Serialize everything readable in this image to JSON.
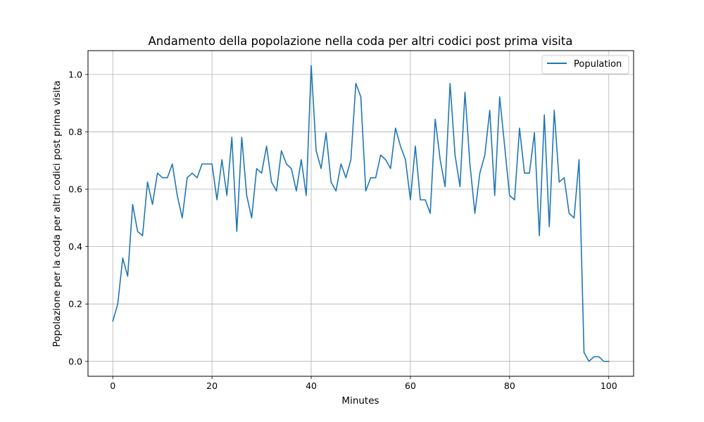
{
  "chart_data": {
    "type": "line",
    "title": "Andamento della popolazione nella coda per altri codici post prima visita",
    "xlabel": "Minutes",
    "ylabel": "Popolazione per la coda per altri codici post prima visita",
    "xlim": [
      -5,
      105
    ],
    "ylim": [
      -0.052,
      1.083
    ],
    "xticks": [
      0,
      20,
      40,
      60,
      80,
      100
    ],
    "yticks": [
      0.0,
      0.2,
      0.4,
      0.6,
      0.8,
      1.0
    ],
    "xtick_labels": [
      "0",
      "20",
      "40",
      "60",
      "80",
      "100"
    ],
    "ytick_labels": [
      "0.0",
      "0.2",
      "0.4",
      "0.6",
      "0.8",
      "1.0"
    ],
    "grid": true,
    "legend_position": "top-right",
    "series": [
      {
        "name": "Population",
        "color": "#1f77b4",
        "x": [
          0,
          1,
          2,
          3,
          4,
          5,
          6,
          7,
          8,
          9,
          10,
          11,
          12,
          13,
          14,
          15,
          16,
          17,
          18,
          19,
          20,
          21,
          22,
          23,
          24,
          25,
          26,
          27,
          28,
          29,
          30,
          31,
          32,
          33,
          34,
          35,
          36,
          37,
          38,
          39,
          40,
          41,
          42,
          43,
          44,
          45,
          46,
          47,
          48,
          49,
          50,
          51,
          52,
          53,
          54,
          55,
          56,
          57,
          58,
          59,
          60,
          61,
          62,
          63,
          64,
          65,
          66,
          67,
          68,
          69,
          70,
          71,
          72,
          73,
          74,
          75,
          76,
          77,
          78,
          79,
          80,
          81,
          82,
          83,
          84,
          85,
          86,
          87,
          88,
          89,
          90,
          91,
          92,
          93,
          94,
          95,
          96,
          97,
          98,
          99,
          100
        ],
        "values": [
          0.14,
          0.2,
          0.36,
          0.297,
          0.547,
          0.453,
          0.438,
          0.625,
          0.547,
          0.656,
          0.64,
          0.64,
          0.688,
          0.578,
          0.5,
          0.64,
          0.656,
          0.64,
          0.688,
          0.688,
          0.688,
          0.563,
          0.703,
          0.578,
          0.781,
          0.453,
          0.781,
          0.578,
          0.5,
          0.672,
          0.656,
          0.75,
          0.625,
          0.594,
          0.734,
          0.688,
          0.672,
          0.594,
          0.703,
          0.578,
          1.031,
          0.734,
          0.672,
          0.797,
          0.625,
          0.594,
          0.688,
          0.64,
          0.703,
          0.969,
          0.922,
          0.594,
          0.64,
          0.64,
          0.719,
          0.703,
          0.672,
          0.813,
          0.75,
          0.703,
          0.563,
          0.75,
          0.563,
          0.563,
          0.516,
          0.844,
          0.703,
          0.609,
          0.969,
          0.719,
          0.609,
          0.938,
          0.688,
          0.516,
          0.656,
          0.719,
          0.875,
          0.578,
          0.922,
          0.75,
          0.578,
          0.563,
          0.813,
          0.656,
          0.656,
          0.797,
          0.438,
          0.859,
          0.469,
          0.875,
          0.625,
          0.64,
          0.516,
          0.5,
          0.703,
          0.031,
          0.0,
          0.016,
          0.016,
          0.0,
          0.0
        ]
      }
    ]
  }
}
